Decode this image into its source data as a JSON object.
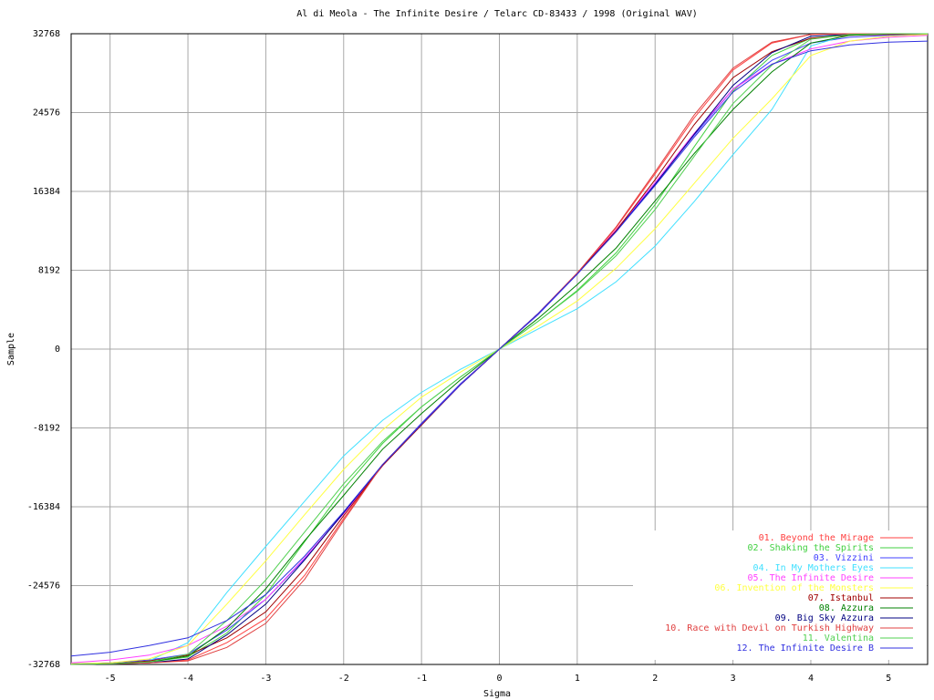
{
  "chart_data": {
    "type": "line",
    "title": "Al di Meola - The Infinite Desire / Telarc CD-83433 / 1998 (Original WAV)",
    "x_label": "Sigma",
    "y_label": "Sample",
    "x": [
      -5.5,
      -5,
      -4.5,
      -4,
      -3.5,
      -3,
      -2.5,
      -2,
      -1.5,
      -1,
      -0.5,
      0,
      0.5,
      1,
      1.5,
      2,
      2.5,
      3,
      3.5,
      4,
      4.5,
      5,
      5.5
    ],
    "xlim": [
      -5.5,
      5.5
    ],
    "xticks": [
      -5,
      -4,
      -3,
      -2,
      -1,
      0,
      1,
      2,
      3,
      4,
      5
    ],
    "ylim": [
      -32768,
      32768
    ],
    "yticks": [
      -32768,
      -24576,
      -16384,
      -8192,
      0,
      8192,
      16384,
      24576,
      32768
    ],
    "grid": true,
    "legend": "lower right",
    "series": [
      {
        "name": "01. Beyond the Mirage",
        "color": "#ff4040",
        "values": [
          -32768,
          -32700,
          -32600,
          -32300,
          -30500,
          -28000,
          -23500,
          -17600,
          -12000,
          -7800,
          -3700,
          0,
          3700,
          7900,
          12600,
          18200,
          24000,
          29000,
          31800,
          32700,
          32768,
          32768,
          32768
        ]
      },
      {
        "name": "02. Shaking the Spirits",
        "color": "#40d040",
        "values": [
          -32768,
          -32700,
          -32500,
          -32000,
          -29500,
          -25500,
          -20000,
          -14500,
          -9800,
          -6000,
          -2900,
          0,
          2900,
          6100,
          10000,
          15000,
          21000,
          26800,
          30500,
          32300,
          32700,
          32768,
          32768
        ]
      },
      {
        "name": "03. Vizzini",
        "color": "#4040ff",
        "values": [
          -32700,
          -32600,
          -32300,
          -31700,
          -29200,
          -26000,
          -21800,
          -17000,
          -12000,
          -7700,
          -3600,
          0,
          3600,
          7800,
          12300,
          17200,
          22200,
          27000,
          30000,
          31800,
          32400,
          32600,
          32700
        ]
      },
      {
        "name": "04. In My Mothers Eyes",
        "color": "#40e0ff",
        "values": [
          -32768,
          -32700,
          -32400,
          -30500,
          -25300,
          -20500,
          -15800,
          -11100,
          -7400,
          -4500,
          -2100,
          0,
          2100,
          4200,
          7000,
          10700,
          15300,
          20200,
          24900,
          31500,
          32700,
          32768,
          32768
        ]
      },
      {
        "name": "05. The Infinite Desire",
        "color": "#ff40ff",
        "values": [
          -32600,
          -32300,
          -31800,
          -30800,
          -28800,
          -26000,
          -21700,
          -17100,
          -12100,
          -7800,
          -3700,
          0,
          3700,
          7900,
          12400,
          17300,
          22400,
          27000,
          29600,
          31200,
          32000,
          32400,
          32600
        ]
      },
      {
        "name": "06. Invention of the Monsters",
        "color": "#ffff40",
        "values": [
          -32700,
          -32600,
          -32200,
          -30800,
          -26500,
          -22000,
          -17200,
          -12500,
          -8400,
          -5000,
          -2400,
          0,
          2400,
          5000,
          8400,
          12500,
          17200,
          21900,
          26000,
          30500,
          32000,
          32500,
          32700
        ]
      },
      {
        "name": "07. Istanbul",
        "color": "#a00000",
        "values": [
          -32768,
          -32700,
          -32400,
          -31800,
          -30000,
          -27300,
          -22800,
          -17300,
          -12100,
          -7900,
          -3700,
          0,
          3700,
          7900,
          12300,
          17600,
          23300,
          28200,
          30900,
          32300,
          32600,
          32700,
          32768
        ]
      },
      {
        "name": "08. Azzura",
        "color": "#008000",
        "values": [
          -32768,
          -32700,
          -32500,
          -31900,
          -29000,
          -24900,
          -19900,
          -15200,
          -10400,
          -6700,
          -3200,
          0,
          3200,
          6700,
          10500,
          15400,
          20300,
          24900,
          28800,
          31800,
          32600,
          32768,
          32768
        ]
      },
      {
        "name": "09. Big Sky Azzura",
        "color": "#000080",
        "values": [
          -32768,
          -32700,
          -32600,
          -32200,
          -29700,
          -26500,
          -21900,
          -17000,
          -12000,
          -7800,
          -3700,
          0,
          3700,
          7800,
          12200,
          17100,
          22300,
          27400,
          30800,
          32500,
          32700,
          32768,
          32768
        ]
      },
      {
        "name": "10. Race with Devil on Turkish Highway",
        "color": "#e04040",
        "values": [
          -32768,
          -32700,
          -32600,
          -32400,
          -31000,
          -28500,
          -23900,
          -17800,
          -12000,
          -7800,
          -3700,
          0,
          3700,
          7900,
          12700,
          18400,
          24300,
          29200,
          31900,
          32700,
          32768,
          32768,
          32768
        ]
      },
      {
        "name": "11. Valentina",
        "color": "#50d050",
        "values": [
          -32768,
          -32700,
          -32500,
          -31700,
          -28200,
          -24000,
          -19000,
          -14000,
          -9600,
          -6000,
          -2900,
          0,
          2900,
          6000,
          9700,
          14500,
          20000,
          25500,
          29500,
          32200,
          32700,
          32768,
          32768
        ]
      },
      {
        "name": "12. The Infinite Desire B",
        "color": "#3030e0",
        "values": [
          -31900,
          -31500,
          -30800,
          -30000,
          -28200,
          -25500,
          -21500,
          -16900,
          -12000,
          -7800,
          -3700,
          0,
          3700,
          7800,
          12200,
          17000,
          22000,
          26700,
          29600,
          31000,
          31600,
          31900,
          32000
        ]
      }
    ]
  }
}
